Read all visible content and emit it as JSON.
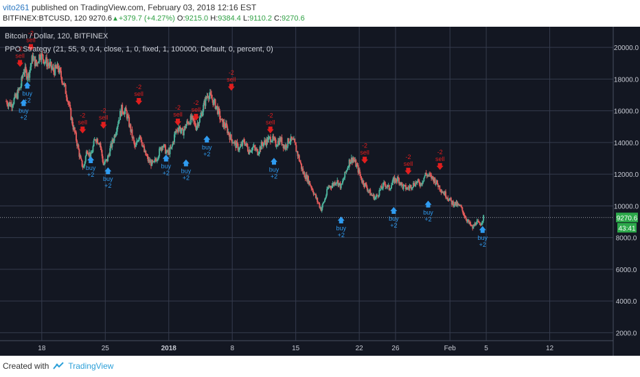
{
  "header": {
    "user": "vito261",
    "published_text": " published on TradingView.com, February 03, 2018 12:16 EST",
    "symbol": "BITFINEX:BTCUSD, 120",
    "price": "9270.6",
    "change": "+379.7 (+4.27%)",
    "o_label": "O:",
    "o_val": "9215.0",
    "h_label": "H:",
    "h_val": "9384.4",
    "l_label": "L:",
    "l_val": "9110.2",
    "c_label": "C:",
    "c_val": "9270.6"
  },
  "chart_info": {
    "title": "Bitcoin / Dollar, 120, BITFINEX",
    "strategy": "PPO Strategy (21, 55, 9, 0.4, close, 1, 0, fixed, 1, 100000, Default, 0, percent, 0)",
    "price_tag": "9270.6",
    "countdown_tag": "43:41"
  },
  "footer": {
    "created": "Created with",
    "brand": "TradingView"
  },
  "colors": {
    "background": "#131722",
    "grid": "#363c4e",
    "up": "#4bb09a",
    "down": "#e25a5a",
    "buy": "#2f9bf0",
    "sell": "#e01e1e",
    "tag": "#2ca84a",
    "text": "#c8cbd4"
  },
  "chart_data": {
    "type": "candlestick",
    "title": "Bitcoin / Dollar, 120, BITFINEX",
    "ylim": [
      1500,
      21300
    ],
    "y_ticks": [
      "2000.0",
      "4000.0",
      "6000.0",
      "8000.0",
      "10000.0",
      "12000.0",
      "14000.0",
      "16000.0",
      "18000.0",
      "20000.0"
    ],
    "x_ticks": [
      {
        "label": "18",
        "day": 18
      },
      {
        "label": "25",
        "day": 25
      },
      {
        "label": "2018",
        "day": 32
      },
      {
        "label": "8",
        "day": 39
      },
      {
        "label": "15",
        "day": 46
      },
      {
        "label": "22",
        "day": 53
      },
      {
        "label": "26",
        "day": 57
      },
      {
        "label": "Feb",
        "day": 63
      },
      {
        "label": "5",
        "day": 67
      },
      {
        "label": "12",
        "day": 74
      }
    ],
    "xlim": [
      14,
      81
    ],
    "price_path": [
      [
        14.0,
        16600
      ],
      [
        14.6,
        16400
      ],
      [
        15.2,
        16900
      ],
      [
        15.7,
        17600
      ],
      [
        16.0,
        18600
      ],
      [
        16.5,
        18200
      ],
      [
        17.0,
        19400
      ],
      [
        17.4,
        18900
      ],
      [
        17.8,
        19600
      ],
      [
        18.3,
        19200
      ],
      [
        18.8,
        18900
      ],
      [
        19.3,
        18500
      ],
      [
        19.8,
        18700
      ],
      [
        20.3,
        17900
      ],
      [
        20.8,
        16900
      ],
      [
        21.3,
        15400
      ],
      [
        21.8,
        14200
      ],
      [
        22.3,
        12800
      ],
      [
        22.6,
        12400
      ],
      [
        23.0,
        13600
      ],
      [
        23.4,
        13100
      ],
      [
        23.9,
        14300
      ],
      [
        24.4,
        14000
      ],
      [
        24.8,
        12600
      ],
      [
        25.2,
        12900
      ],
      [
        25.6,
        13700
      ],
      [
        26.0,
        14400
      ],
      [
        26.4,
        15300
      ],
      [
        26.8,
        16100
      ],
      [
        27.3,
        15900
      ],
      [
        27.8,
        14800
      ],
      [
        28.3,
        13600
      ],
      [
        28.8,
        14600
      ],
      [
        29.3,
        13400
      ],
      [
        29.8,
        12800
      ],
      [
        30.3,
        12600
      ],
      [
        30.8,
        13200
      ],
      [
        31.3,
        13900
      ],
      [
        31.8,
        13300
      ],
      [
        32.3,
        13600
      ],
      [
        32.7,
        14600
      ],
      [
        33.1,
        15000
      ],
      [
        33.5,
        14600
      ],
      [
        34.0,
        15200
      ],
      [
        34.5,
        15500
      ],
      [
        35.0,
        15000
      ],
      [
        35.5,
        15600
      ],
      [
        35.9,
        16400
      ],
      [
        36.3,
        17100
      ],
      [
        36.8,
        16700
      ],
      [
        37.3,
        16200
      ],
      [
        37.8,
        15300
      ],
      [
        38.3,
        15000
      ],
      [
        38.8,
        14300
      ],
      [
        39.3,
        13900
      ],
      [
        39.8,
        13600
      ],
      [
        40.3,
        14100
      ],
      [
        40.8,
        13500
      ],
      [
        41.3,
        13700
      ],
      [
        41.8,
        13400
      ],
      [
        42.3,
        13900
      ],
      [
        42.8,
        14100
      ],
      [
        43.3,
        14300
      ],
      [
        43.8,
        13900
      ],
      [
        44.3,
        14200
      ],
      [
        44.8,
        13700
      ],
      [
        45.3,
        14200
      ],
      [
        45.8,
        14000
      ],
      [
        46.3,
        13100
      ],
      [
        46.8,
        12100
      ],
      [
        47.3,
        11700
      ],
      [
        47.8,
        11100
      ],
      [
        48.3,
        10400
      ],
      [
        48.8,
        9800
      ],
      [
        49.2,
        10400
      ],
      [
        49.6,
        11200
      ],
      [
        50.0,
        11300
      ],
      [
        50.5,
        11600
      ],
      [
        51.0,
        11200
      ],
      [
        51.5,
        12100
      ],
      [
        51.9,
        12800
      ],
      [
        52.3,
        13000
      ],
      [
        52.8,
        12400
      ],
      [
        53.3,
        11600
      ],
      [
        53.8,
        11200
      ],
      [
        54.3,
        10700
      ],
      [
        54.8,
        10500
      ],
      [
        55.3,
        11000
      ],
      [
        55.8,
        11400
      ],
      [
        56.3,
        11100
      ],
      [
        56.8,
        11600
      ],
      [
        57.3,
        11700
      ],
      [
        57.8,
        11200
      ],
      [
        58.3,
        11100
      ],
      [
        58.8,
        11300
      ],
      [
        59.3,
        11500
      ],
      [
        59.8,
        11400
      ],
      [
        60.3,
        12000
      ],
      [
        60.7,
        11900
      ],
      [
        61.2,
        11700
      ],
      [
        61.7,
        11300
      ],
      [
        62.2,
        10900
      ],
      [
        62.7,
        10600
      ],
      [
        63.2,
        10200
      ],
      [
        63.7,
        10100
      ],
      [
        64.2,
        9900
      ],
      [
        64.7,
        9300
      ],
      [
        65.1,
        8900
      ],
      [
        65.5,
        8600
      ],
      [
        65.9,
        9000
      ],
      [
        66.3,
        8800
      ],
      [
        66.7,
        9270
      ]
    ],
    "signals": [
      {
        "type": "sell",
        "x": 15.6,
        "price": 18900,
        "labels": [
          "-2",
          "sell"
        ]
      },
      {
        "type": "buy",
        "x": 16.0,
        "price": 16600,
        "labels": [
          "buy",
          "+2"
        ]
      },
      {
        "type": "sell",
        "x": 16.8,
        "price": 19900,
        "labels": [
          "-2",
          "sell"
        ]
      },
      {
        "type": "buy",
        "x": 16.4,
        "price": 17700,
        "labels": [
          "buy",
          "+2"
        ]
      },
      {
        "type": "sell",
        "x": 22.5,
        "price": 14700,
        "labels": [
          "-2",
          "sell"
        ]
      },
      {
        "type": "buy",
        "x": 23.4,
        "price": 13000,
        "labels": [
          "buy",
          "+2"
        ]
      },
      {
        "type": "sell",
        "x": 24.8,
        "price": 15000,
        "labels": [
          "-2",
          "sell"
        ]
      },
      {
        "type": "buy",
        "x": 25.3,
        "price": 12300,
        "labels": [
          "buy",
          "+2"
        ]
      },
      {
        "type": "sell",
        "x": 28.7,
        "price": 16500,
        "labels": [
          "-2",
          "sell"
        ]
      },
      {
        "type": "buy",
        "x": 31.7,
        "price": 13100,
        "labels": [
          "buy",
          "+2"
        ]
      },
      {
        "type": "sell",
        "x": 33.0,
        "price": 15200,
        "labels": [
          "-2",
          "sell"
        ]
      },
      {
        "type": "buy",
        "x": 33.9,
        "price": 12800,
        "labels": [
          "buy",
          "+2"
        ]
      },
      {
        "type": "sell",
        "x": 35.0,
        "price": 15500,
        "labels": [
          "-2",
          "sell"
        ]
      },
      {
        "type": "buy",
        "x": 36.2,
        "price": 14300,
        "labels": [
          "buy",
          "+2"
        ]
      },
      {
        "type": "sell",
        "x": 38.9,
        "price": 17400,
        "labels": [
          "-2",
          "sell"
        ]
      },
      {
        "type": "sell",
        "x": 43.2,
        "price": 14700,
        "labels": [
          "-2",
          "sell"
        ]
      },
      {
        "type": "buy",
        "x": 43.6,
        "price": 12900,
        "labels": [
          "buy",
          "+2"
        ]
      },
      {
        "type": "buy",
        "x": 51.0,
        "price": 9200,
        "labels": [
          "buy",
          "+2"
        ]
      },
      {
        "type": "sell",
        "x": 53.6,
        "price": 12800,
        "labels": [
          "-2",
          "sell"
        ]
      },
      {
        "type": "buy",
        "x": 56.8,
        "price": 9800,
        "labels": [
          "buy",
          "+2"
        ]
      },
      {
        "type": "sell",
        "x": 58.4,
        "price": 12100,
        "labels": [
          "-2",
          "sell"
        ]
      },
      {
        "type": "buy",
        "x": 60.6,
        "price": 10200,
        "labels": [
          "buy",
          "+2"
        ]
      },
      {
        "type": "sell",
        "x": 61.9,
        "price": 12400,
        "labels": [
          "-2",
          "sell"
        ]
      },
      {
        "type": "buy",
        "x": 66.6,
        "price": 8600,
        "labels": [
          "buy",
          "+2"
        ]
      }
    ]
  }
}
